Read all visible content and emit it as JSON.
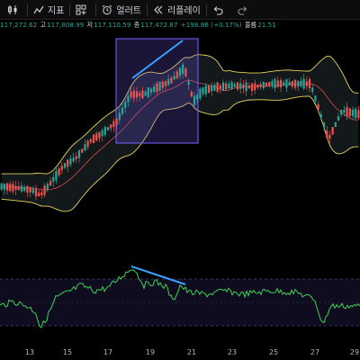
{
  "toolbar": {
    "items": [
      {
        "label": "",
        "icon": "candlestick-icon"
      },
      {
        "label": "지표",
        "icon": "indicators-icon"
      },
      {
        "label": "",
        "icon": "layout-grid-icon"
      },
      {
        "label": "얼러트",
        "icon": "alarm-clock-icon"
      },
      {
        "label": "리플레이",
        "icon": "replay-icon"
      },
      {
        "label": "",
        "icon": "undo-icon"
      },
      {
        "label": "",
        "icon": "redo-icon"
      }
    ]
  },
  "ohlc": {
    "open_value": "117,272.62",
    "high_label": "고",
    "high_value": "117,808.99",
    "low_label": "저",
    "low_value": "117,110.59",
    "close_label": "종",
    "close_value": "117,472.87",
    "change_value": "+198.86 (+0.17%)",
    "volume_label": "볼륨",
    "volume_value": "21.51"
  },
  "x_axis": {
    "ticks": [
      "13",
      "15",
      "17",
      "19",
      "21",
      "23",
      "25",
      "27",
      "29"
    ]
  },
  "colors": {
    "up": "#26a69a",
    "down": "#ef5350",
    "bollinger": "#e6d35a",
    "rsi": "#39d353",
    "trendline": "#3aa0ff",
    "highlight_box": "#7b61ff"
  }
}
